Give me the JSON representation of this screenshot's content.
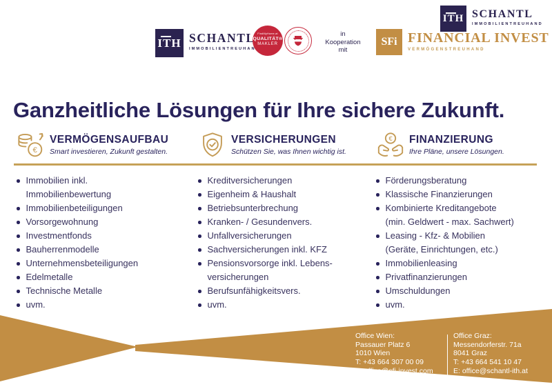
{
  "colors": {
    "navy": "#29235C",
    "logo_navy": "#2B2350",
    "gold": "#C28E44",
    "icon_gold": "#C49B55",
    "red": "#C5273B"
  },
  "glyphs": {
    "euro": "€"
  },
  "header": {
    "ith": {
      "mark": "ITH",
      "name": "SCHANTL",
      "tagline": "IMMOBILIENTREUHAND"
    },
    "corner_ith": {
      "mark": "ITH",
      "name": "SCHANTL",
      "tagline": "IMMOBILIENTREUHAND"
    },
    "quality_badge": {
      "top": "FindMyHome.at",
      "line1": "QUALITÄT®",
      "line2": "MAKLER"
    },
    "cooperation": "in\nKooperation\nmit",
    "sfi": {
      "mark": "SFi",
      "name": "FINANCIAL INVEST",
      "tagline": "VERMÖGENSTREUHAND"
    }
  },
  "title": "Ganzheitliche Lösungen für Ihre sichere Zukunft.",
  "columns": [
    {
      "icon": "coins-growth-euro-icon",
      "title": "VERMÖGENSAUFBAU",
      "subtitle": "Smart investieren, Zukunft gestalten.",
      "items": [
        "Immobilien inkl.\nImmobilienbewertung",
        "Immobilienbeteiligungen",
        "Vorsorgewohnung",
        "Investmentfonds",
        "Bauherrenmodelle",
        "Unternehmensbeteiligungen",
        "Edelmetalle",
        "Technische Metalle",
        "uvm."
      ]
    },
    {
      "icon": "shield-check-icon",
      "title": "VERSICHERUNGEN",
      "subtitle": "Schützen Sie, was Ihnen wichtig ist.",
      "items": [
        "Kreditversicherungen",
        "Eigenheim & Haushalt",
        "Betriebsunterbrechung",
        "Kranken- / Gesundenvers.",
        "Unfallversicherungen",
        "Sachversicherungen inkl. KFZ",
        "Pensionsvorsorge inkl. Lebens-\nversicherungen",
        "Berufsunfähigkeitsvers.",
        "uvm."
      ]
    },
    {
      "icon": "hands-euro-coin-icon",
      "title": "FINANZIERUNG",
      "subtitle": "Ihre Pläne, unsere Lösungen.",
      "items": [
        "Förderungsberatung",
        "Klassische Finanzierungen",
        "Kombinierte Kreditangebote\n(min. Geldwert - max. Sachwert)",
        "Leasing - Kfz- & Mobilien\n(Geräte, Einrichtungen, etc.)",
        "Immobilienleasing",
        "Privatfinanzierungen",
        "Umschuldungen",
        "uvm."
      ]
    }
  ],
  "footer": {
    "offices": [
      {
        "lines": [
          "Office Wien:",
          "Passauer Platz 6",
          "1010 Wien",
          "T: +43 664 307 00 09",
          "E: office@sfi-invest.com"
        ]
      },
      {
        "lines": [
          "Office Graz:",
          "Messendorferstr. 71a",
          "8041 Graz",
          "T: +43 664 541 10 47",
          "E: office@schantl-ith.at"
        ]
      }
    ]
  }
}
